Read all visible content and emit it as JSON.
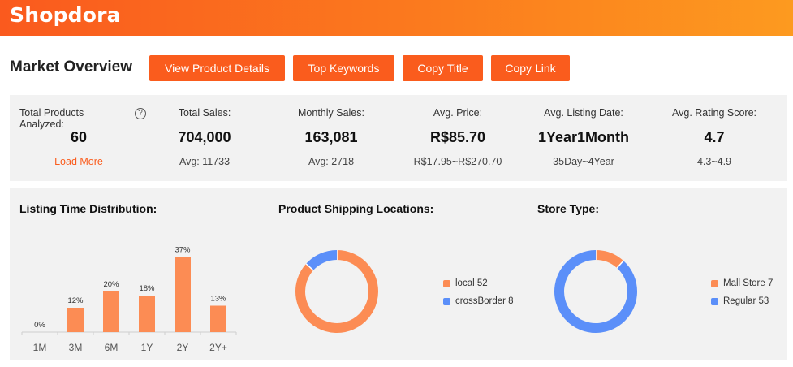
{
  "brand": {
    "logo_text": "Shopdora"
  },
  "header": {
    "title": "Market Overview",
    "buttons": [
      "View Product Details",
      "Top Keywords",
      "Copy Title",
      "Copy Link"
    ]
  },
  "stats": {
    "total_products": {
      "label": "Total Products Analyzed:",
      "value": "60",
      "action": "Load More",
      "help": "?"
    },
    "total_sales": {
      "label": "Total Sales:",
      "value": "704,000",
      "sub": "Avg: 11733"
    },
    "monthly_sales": {
      "label": "Monthly Sales:",
      "value": "163,081",
      "sub": "Avg: 2718"
    },
    "avg_price": {
      "label": "Avg. Price:",
      "value": "R$85.70",
      "sub": "R$17.95~R$270.70"
    },
    "avg_listing": {
      "label": "Avg. Listing Date:",
      "value": "1Year1Month",
      "sub": "35Day~4Year"
    },
    "avg_rating": {
      "label": "Avg. Rating Score:",
      "value": "4.7",
      "sub": "4.3~4.9"
    }
  },
  "colors": {
    "accent": "#fa5c1d",
    "bar": "#fc8c54",
    "blue": "#5b8ff9",
    "panel": "#f2f2f2"
  },
  "sections": {
    "listing": {
      "title": "Listing Time Distribution:"
    },
    "shipping": {
      "title": "Product Shipping Locations:",
      "legend": [
        {
          "label": "local 52"
        },
        {
          "label": "crossBorder 8"
        }
      ]
    },
    "store": {
      "title": "Store Type:",
      "legend": [
        {
          "label": "Mall Store 7"
        },
        {
          "label": "Regular 53"
        }
      ]
    }
  },
  "chart_data": [
    {
      "type": "bar",
      "title": "Listing Time Distribution:",
      "categories": [
        "1M",
        "3M",
        "6M",
        "1Y",
        "2Y",
        "2Y+"
      ],
      "values": [
        0,
        12,
        20,
        18,
        37,
        13
      ],
      "labels": [
        "0%",
        "12%",
        "20%",
        "18%",
        "37%",
        "13%"
      ],
      "ylim": [
        0,
        40
      ]
    },
    {
      "type": "pie",
      "title": "Product Shipping Locations:",
      "categories": [
        "local",
        "crossBorder"
      ],
      "values": [
        52,
        8
      ]
    },
    {
      "type": "pie",
      "title": "Store Type:",
      "categories": [
        "Mall Store",
        "Regular"
      ],
      "values": [
        7,
        53
      ]
    }
  ]
}
